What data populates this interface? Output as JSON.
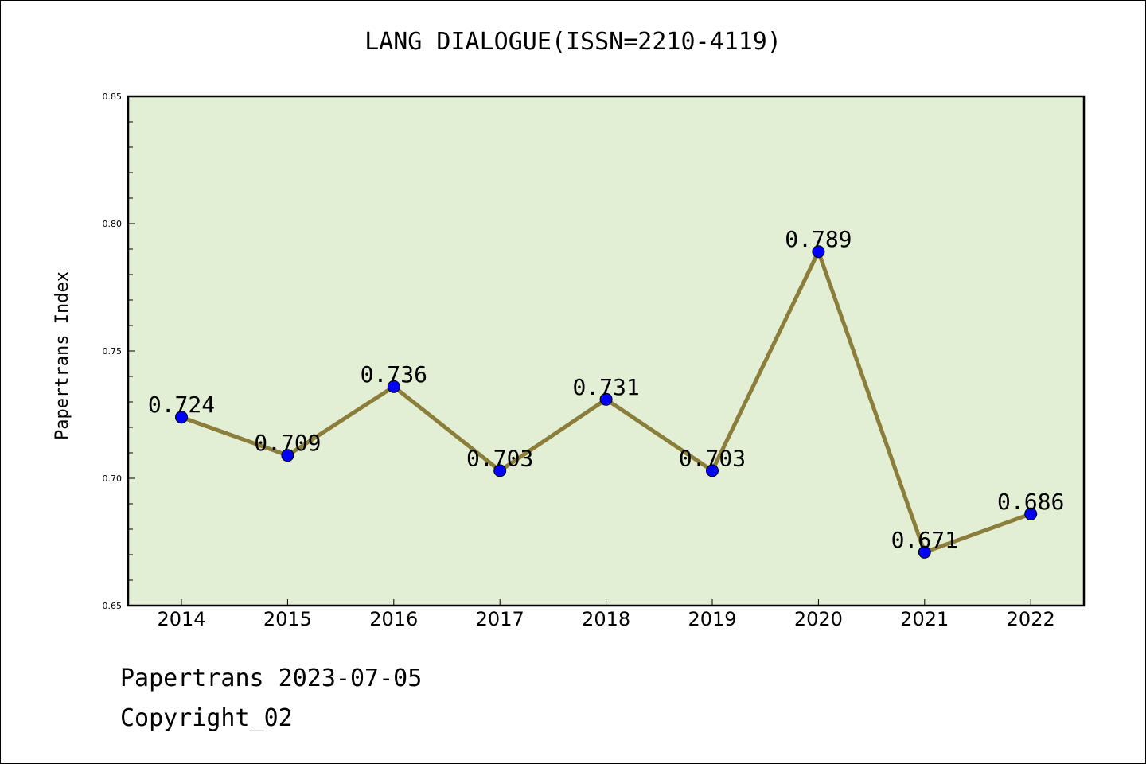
{
  "footer": {
    "line1": "Papertrans 2023-07-05",
    "line2": "Copyright_02"
  },
  "colors": {
    "plot_bg": "#e2efd5",
    "line": "#8b7d3a",
    "marker": "#0000ff"
  },
  "chart_data": {
    "type": "line",
    "title": "LANG DIALOGUE(ISSN=2210-4119)",
    "xlabel": "",
    "ylabel": "Papertrans Index",
    "categories": [
      "2014",
      "2015",
      "2016",
      "2017",
      "2018",
      "2019",
      "2020",
      "2021",
      "2022"
    ],
    "values": [
      0.724,
      0.709,
      0.736,
      0.703,
      0.731,
      0.703,
      0.789,
      0.671,
      0.686
    ],
    "data_labels": [
      "0.724",
      "0.709",
      "0.736",
      "0.703",
      "0.731",
      "0.703",
      "0.789",
      "0.671",
      "0.686"
    ],
    "ylim": [
      0.65,
      0.85
    ],
    "yticks": [
      "0.65",
      "0.70",
      "0.75",
      "0.80",
      "0.85"
    ],
    "grid": false,
    "legend": "none"
  }
}
